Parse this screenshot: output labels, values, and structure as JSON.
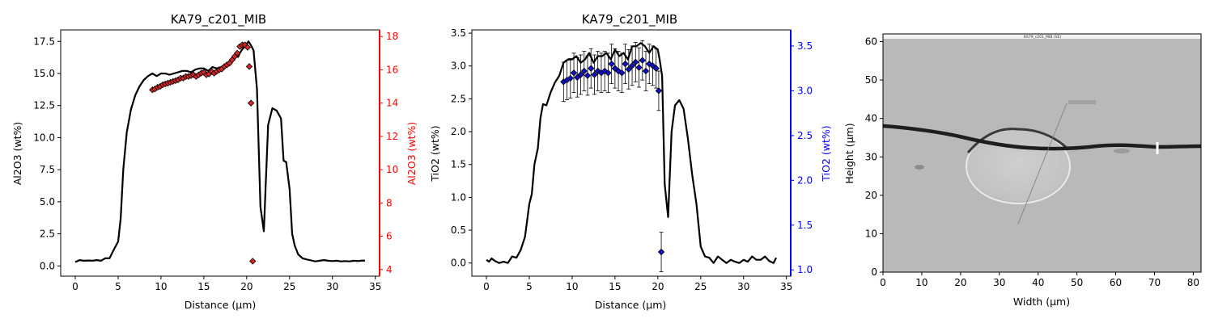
{
  "chart_data": [
    {
      "type": "line",
      "title": "KA79_c201_MIB",
      "xlabel": "Distance (µm)",
      "ylabel": "Al2O3 (wt%)",
      "y2label": "Al2O3 (wt%)",
      "xlim": [
        -1.7,
        35.5
      ],
      "ylim": [
        -0.8,
        18.4
      ],
      "y2lim": [
        3.6,
        18.4
      ],
      "xticks": [
        "0",
        "5",
        "10",
        "15",
        "20",
        "25",
        "30",
        "35"
      ],
      "yticks": [
        "0.0",
        "2.5",
        "5.0",
        "7.5",
        "10.0",
        "12.5",
        "15.0",
        "17.5"
      ],
      "y2ticks": [
        "4",
        "6",
        "8",
        "10",
        "12",
        "14",
        "16",
        "18"
      ],
      "colors": {
        "line": "#000000",
        "points": "#d62728",
        "secondary_axis": "#ff0000"
      },
      "series": [
        {
          "axis": "left",
          "style": "line",
          "x": [
            0,
            0.5,
            1,
            1.5,
            2,
            2.5,
            3,
            3.5,
            4,
            4.3,
            4.6,
            5,
            5.3,
            5.6,
            6,
            6.5,
            7,
            7.5,
            8,
            8.5,
            9,
            9.5,
            10,
            10.5,
            11,
            11.5,
            12,
            12.5,
            13,
            13.5,
            14,
            14.5,
            15,
            15.5,
            16,
            16.5,
            17,
            17.5,
            18,
            18.3,
            18.6,
            19,
            19.2,
            19.5,
            19.8,
            20,
            20.2,
            20.5,
            20.8,
            21.2,
            21.6,
            22,
            22.5,
            23,
            23.5,
            24,
            24.3,
            24.6,
            25,
            25.3,
            25.6,
            26,
            26.5,
            27,
            28,
            28.5,
            29,
            29.5,
            30,
            30.5,
            31,
            31.5,
            32,
            32.5,
            33,
            33.5,
            33.8
          ],
          "y": [
            0.3,
            0.45,
            0.4,
            0.42,
            0.4,
            0.45,
            0.4,
            0.6,
            0.6,
            1.0,
            1.4,
            1.9,
            3.7,
            7.5,
            10.4,
            12.2,
            13.3,
            14.0,
            14.5,
            14.8,
            15.0,
            14.8,
            15.0,
            15.0,
            14.9,
            15.0,
            15.1,
            15.2,
            15.2,
            15.1,
            15.3,
            15.4,
            15.4,
            15.2,
            15.5,
            15.4,
            15.5,
            15.7,
            15.8,
            16.0,
            16.3,
            16.3,
            16.6,
            16.9,
            17.1,
            17.3,
            17.5,
            17.2,
            16.8,
            13.8,
            4.6,
            2.7,
            11.0,
            12.3,
            12.1,
            11.5,
            8.2,
            8.1,
            6.0,
            2.5,
            1.6,
            0.9,
            0.6,
            0.5,
            0.35,
            0.4,
            0.45,
            0.4,
            0.38,
            0.4,
            0.35,
            0.38,
            0.35,
            0.4,
            0.38,
            0.42,
            0.4
          ]
        },
        {
          "axis": "right",
          "style": "markers",
          "x": [
            9,
            9.3,
            9.6,
            9.9,
            10.2,
            10.5,
            10.8,
            11.1,
            11.4,
            11.7,
            12,
            12.3,
            12.6,
            12.9,
            13.2,
            13.5,
            13.8,
            14.1,
            14.4,
            14.7,
            15,
            15.3,
            15.6,
            15.9,
            16.2,
            16.5,
            16.8,
            17.1,
            17.4,
            17.7,
            18,
            18.3,
            18.6,
            18.9,
            19.2,
            19.5,
            19.8,
            20.1,
            20.3,
            20.5,
            20.7
          ],
          "y": [
            14.8,
            14.85,
            14.95,
            15.0,
            15.1,
            15.15,
            15.2,
            15.25,
            15.3,
            15.35,
            15.4,
            15.5,
            15.5,
            15.6,
            15.6,
            15.65,
            15.7,
            15.6,
            15.7,
            15.8,
            15.85,
            15.7,
            15.75,
            15.9,
            15.8,
            15.9,
            16.0,
            16.05,
            16.2,
            16.3,
            16.4,
            16.6,
            16.8,
            17.0,
            17.4,
            17.5,
            17.5,
            17.35,
            16.2,
            14.0,
            4.5
          ]
        }
      ]
    },
    {
      "type": "line",
      "title": "KA79_c201_MIB",
      "xlabel": "Distance (µm)",
      "ylabel": "TiO2 (wt%)",
      "y2label": "TiO2 (wt%)",
      "xlim": [
        -1.7,
        35.5
      ],
      "ylim": [
        -0.2,
        3.55
      ],
      "y2lim": [
        0.93,
        3.68
      ],
      "xticks": [
        "0",
        "5",
        "10",
        "15",
        "20",
        "25",
        "30",
        "35"
      ],
      "yticks": [
        "0.0",
        "0.5",
        "1.0",
        "1.5",
        "2.0",
        "2.5",
        "3.0",
        "3.5"
      ],
      "y2ticks": [
        "1.0",
        "1.5",
        "2.0",
        "2.5",
        "3.0",
        "3.5"
      ],
      "colors": {
        "line": "#000000",
        "points": "#1010c8",
        "secondary_axis": "#0000ff",
        "errorbars": "#000000"
      },
      "series": [
        {
          "axis": "left",
          "style": "line",
          "x": [
            0,
            0.3,
            0.6,
            1,
            1.5,
            2,
            2.5,
            3,
            3.5,
            4,
            4.5,
            5,
            5.3,
            5.6,
            6,
            6.3,
            6.6,
            7,
            7.5,
            8,
            8.5,
            9,
            9.5,
            10,
            10.5,
            11,
            11.5,
            12,
            12.5,
            13,
            13.5,
            14,
            14.5,
            15,
            15.5,
            16,
            16.5,
            17,
            17.5,
            18,
            18.5,
            19,
            19.5,
            20,
            20.2,
            20.5,
            20.8,
            21.2,
            21.6,
            22,
            22.5,
            23,
            23.5,
            24,
            24.5,
            25,
            25.5,
            26,
            26.5,
            27,
            27.5,
            28,
            28.5,
            29,
            29.5,
            30,
            30.5,
            31,
            31.5,
            32,
            32.5,
            33,
            33.5,
            33.8
          ],
          "y": [
            0.05,
            0.02,
            0.07,
            0.03,
            0.0,
            0.02,
            0.0,
            0.1,
            0.08,
            0.2,
            0.4,
            0.9,
            1.05,
            1.5,
            1.75,
            2.2,
            2.42,
            2.4,
            2.6,
            2.75,
            2.85,
            3.05,
            3.1,
            3.1,
            3.15,
            3.05,
            3.1,
            3.2,
            3.05,
            3.15,
            3.15,
            3.2,
            3.1,
            3.25,
            3.15,
            3.2,
            3.1,
            3.3,
            3.3,
            3.35,
            3.3,
            3.2,
            3.3,
            3.25,
            3.1,
            2.85,
            1.2,
            0.7,
            2.0,
            2.4,
            2.48,
            2.35,
            1.9,
            1.35,
            0.9,
            0.25,
            0.1,
            0.08,
            0.0,
            0.1,
            0.05,
            0.0,
            0.05,
            0.02,
            0.0,
            0.05,
            0.02,
            0.1,
            0.05,
            0.05,
            0.1,
            0.03,
            0.0,
            0.08
          ]
        },
        {
          "axis": "right",
          "style": "markers",
          "errorbar": 0.22,
          "x": [
            9,
            9.4,
            9.8,
            10.2,
            10.6,
            11,
            11.4,
            11.8,
            12.2,
            12.6,
            13,
            13.4,
            13.8,
            14.2,
            14.6,
            15,
            15.4,
            15.8,
            16.2,
            16.6,
            17,
            17.4,
            17.8,
            18.2,
            18.6,
            19,
            19.4,
            19.8,
            20.1,
            20.4
          ],
          "y": [
            3.1,
            3.12,
            3.14,
            3.2,
            3.15,
            3.18,
            3.22,
            3.17,
            3.25,
            3.18,
            3.22,
            3.2,
            3.22,
            3.2,
            3.3,
            3.25,
            3.22,
            3.2,
            3.3,
            3.24,
            3.28,
            3.32,
            3.26,
            3.34,
            3.22,
            3.3,
            3.28,
            3.25,
            3.0,
            1.2
          ]
        }
      ]
    },
    {
      "type": "image",
      "title": "",
      "xlabel": "Width (µm)",
      "ylabel": "Height (µm)",
      "xlim": [
        0,
        82
      ],
      "ylim": [
        0,
        62
      ],
      "xticks": [
        "0",
        "10",
        "20",
        "30",
        "40",
        "50",
        "60",
        "70",
        "80"
      ],
      "yticks": [
        "0",
        "10",
        "20",
        "30",
        "40",
        "50",
        "60"
      ],
      "image_caption": "KA79_c201_MIB (SE)",
      "colors": {
        "background": "#b9b9b9",
        "crack": "#1e1e1e",
        "inclusion": "#c8c8c8",
        "traverse": "#7a7a7a"
      }
    }
  ]
}
